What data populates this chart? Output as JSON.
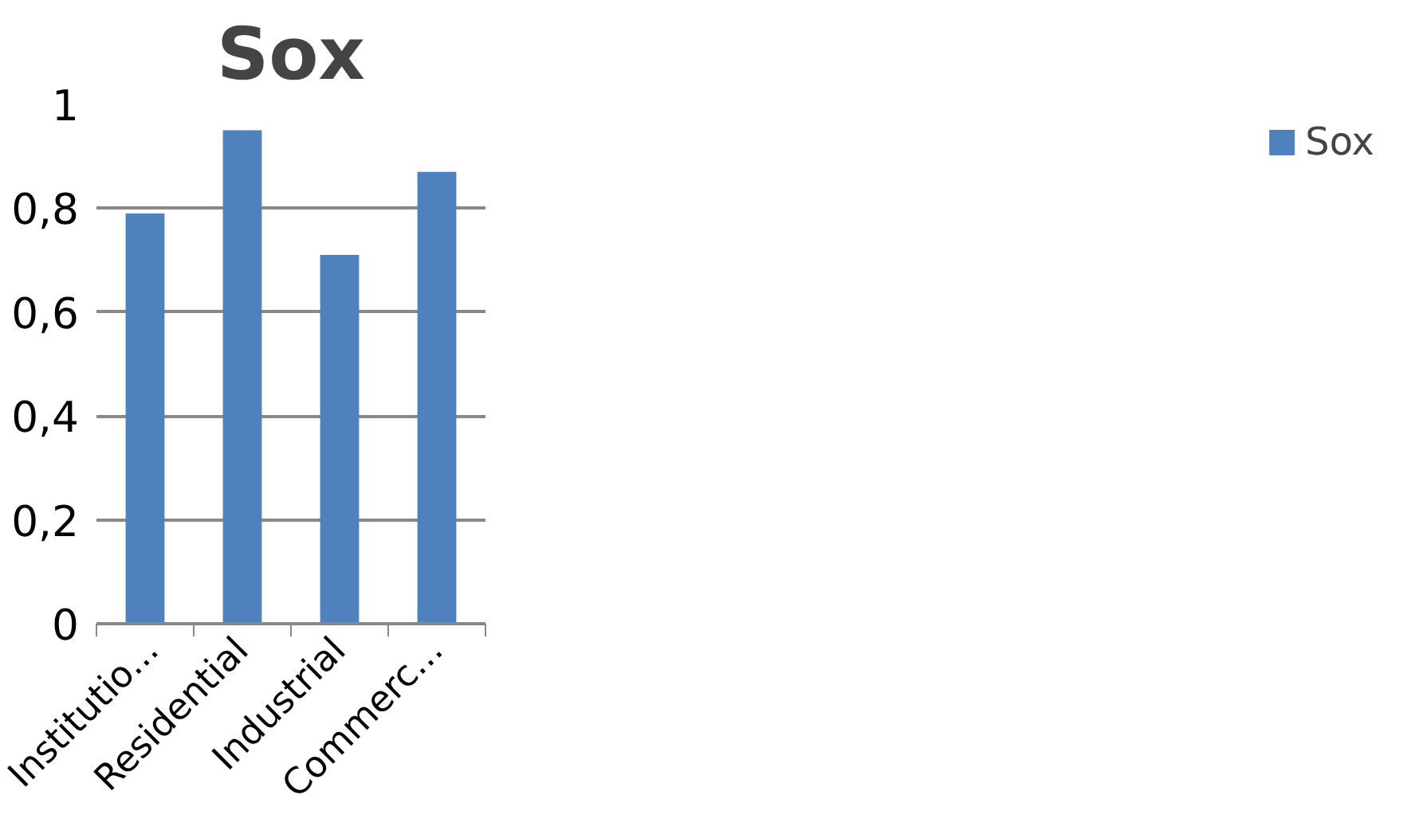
{
  "chart_data": {
    "type": "bar",
    "title": "Sox",
    "categories": [
      "Institutio...",
      "Residential",
      "Industrial",
      "Commerc..."
    ],
    "series": [
      {
        "name": "Sox",
        "color": "#4f81bd",
        "values": [
          0.79,
          0.95,
          0.71,
          0.87
        ]
      }
    ],
    "ylim": [
      0,
      1
    ],
    "yticks": [
      0,
      {
        "value": 0.2,
        "label": "0,2"
      },
      {
        "value": 0.4,
        "label": "0,4"
      },
      {
        "value": 0.6,
        "label": "0,6"
      },
      {
        "value": 0.8,
        "label": "0,8"
      },
      1
    ],
    "grid": "y",
    "legend": "right"
  }
}
